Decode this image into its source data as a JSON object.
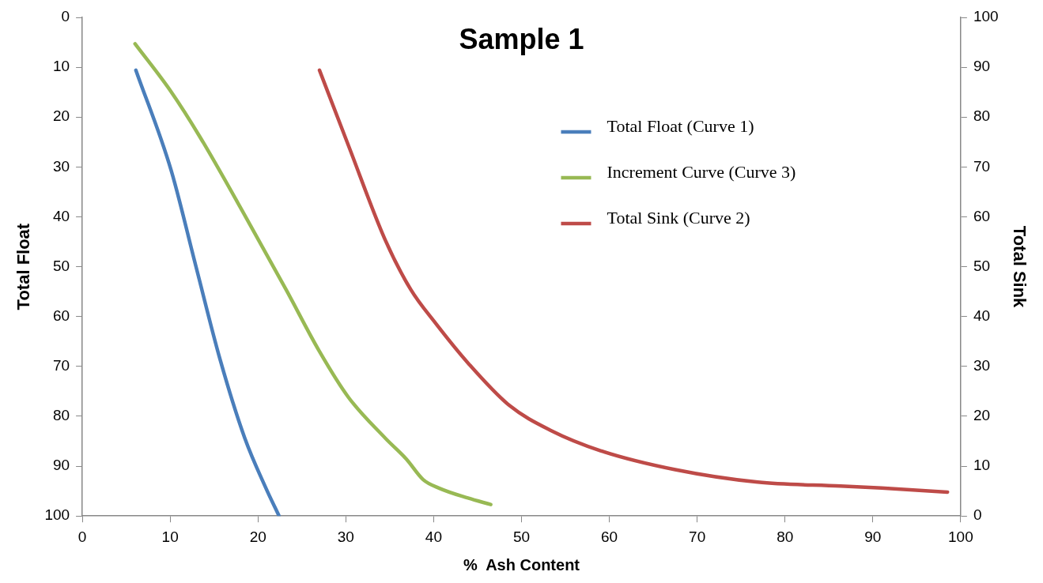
{
  "chart_data": {
    "type": "line",
    "title": "Sample 1",
    "xlabel": "%  Ash Content",
    "ylabel": "Total Float",
    "y2label": "Total Sink",
    "xlim": [
      0,
      100
    ],
    "xticks": [
      0,
      10,
      20,
      30,
      40,
      50,
      60,
      70,
      80,
      90,
      100
    ],
    "ylim": [
      100,
      0
    ],
    "yticks": [
      0,
      10,
      20,
      30,
      40,
      50,
      60,
      70,
      80,
      90,
      100
    ],
    "y2lim": [
      0,
      100
    ],
    "y2ticks": [
      0,
      10,
      20,
      30,
      40,
      50,
      60,
      70,
      80,
      90,
      100
    ],
    "grid": false,
    "legend": "top right",
    "marker": "none",
    "series": [
      {
        "name": "Total Float (Curve 1)",
        "color": "#4a7ebb",
        "x": [
          6.1,
          10.1,
          12.9,
          15.7,
          18.5,
          20.9,
          22.4
        ],
        "values": [
          10.6,
          30.6,
          49.7,
          68.7,
          84.4,
          94.4,
          100
        ]
      },
      {
        "name": "Increment Curve (Curve 3)",
        "color": "#98b954",
        "x": [
          6.0,
          10.1,
          13.4,
          18.5,
          23.2,
          27,
          30.3,
          34.5,
          36.9,
          38.8,
          40.6,
          43.9,
          46.5
        ],
        "values": [
          5.3,
          14.9,
          24,
          39.7,
          54.6,
          67,
          76.2,
          84.4,
          88.6,
          92.7,
          94.4,
          96.4,
          97.7
        ]
      },
      {
        "name": "Total Sink (Curve 2)",
        "color": "#be4b48",
        "axis": "y2",
        "x": [
          27,
          30.3,
          34.5,
          37.4,
          40.2,
          44,
          48.6,
          53.3,
          59,
          67.5,
          76.9,
          86.3,
          91,
          98.5
        ],
        "values": [
          89.4,
          74.3,
          55.3,
          45.4,
          38.7,
          30.5,
          22.2,
          17.2,
          13.1,
          9.3,
          6.8,
          6.0,
          5.6,
          4.8
        ]
      }
    ]
  }
}
